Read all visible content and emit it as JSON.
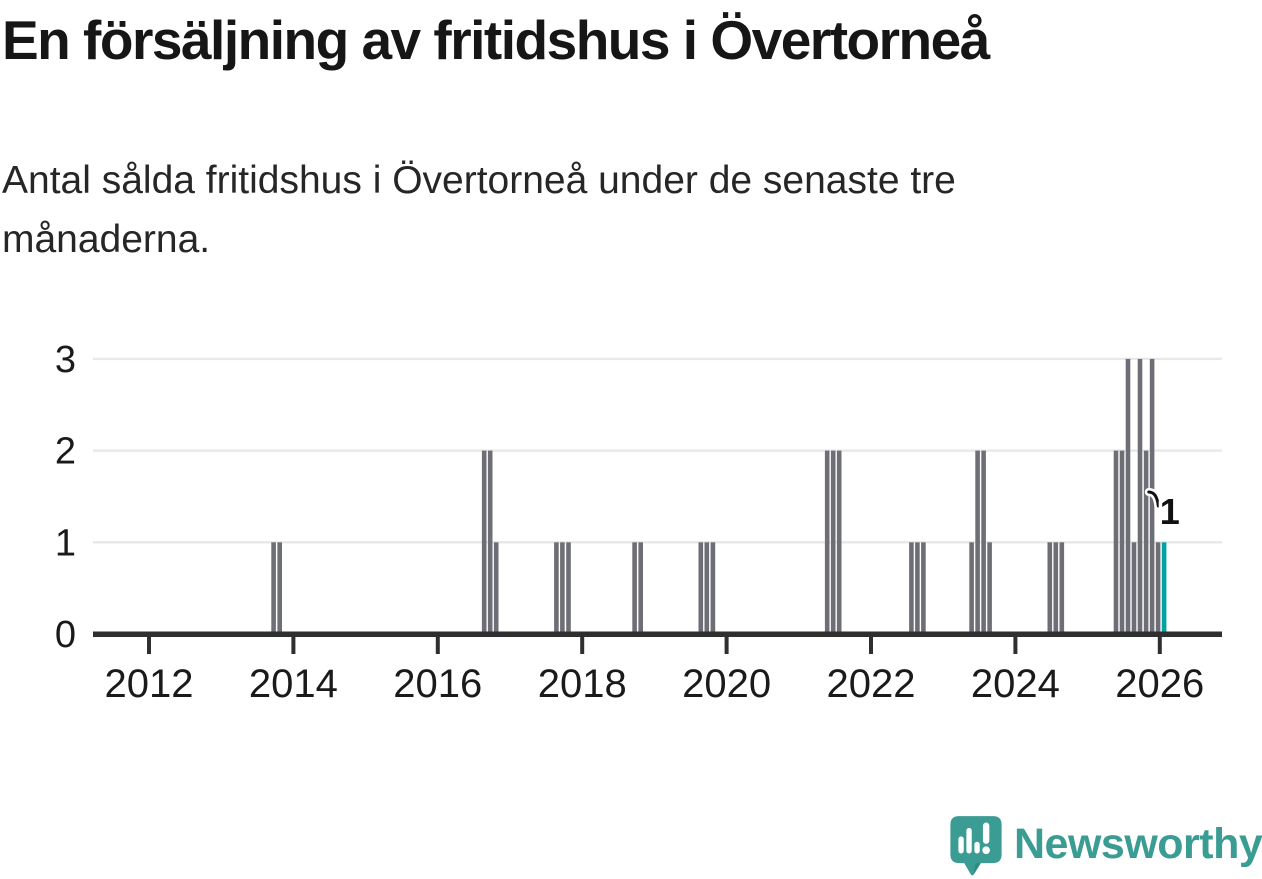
{
  "page": {
    "title": "En försäljning av fritidshus i Övertorneå",
    "subtitle": "Antal sålda fritidshus i Övertorneå under de senaste tre månaderna.",
    "logo_text": "Newsworthy"
  },
  "colors": {
    "bar": "#6e6e76",
    "highlight": "#00a2a0",
    "axis": "#2f2f2f",
    "gridline": "#e8e8e8",
    "label": "#1a1a1a",
    "logo": "#3a9c93"
  },
  "chart_data": {
    "type": "bar",
    "title": "En försäljning av fritidshus i Övertorneå",
    "subtitle": "Antal sålda fritidshus i Övertorneå under de senaste tre månaderna.",
    "xlabel": "",
    "ylabel": "",
    "ylim": [
      0,
      3
    ],
    "yticks": [
      0,
      1,
      2,
      3
    ],
    "xticks": [
      2012,
      2014,
      2016,
      2018,
      2020,
      2022,
      2024,
      2026
    ],
    "grid": "horizontal",
    "legend": "none",
    "annotation": {
      "text": "1",
      "date": "2026-01"
    },
    "bars": [
      {
        "date": "2013-09",
        "value": 1
      },
      {
        "date": "2013-10",
        "value": 1
      },
      {
        "date": "2016-08",
        "value": 2
      },
      {
        "date": "2016-09",
        "value": 2
      },
      {
        "date": "2016-10",
        "value": 1
      },
      {
        "date": "2017-08",
        "value": 1
      },
      {
        "date": "2017-09",
        "value": 1
      },
      {
        "date": "2017-10",
        "value": 1
      },
      {
        "date": "2018-09",
        "value": 1
      },
      {
        "date": "2018-10",
        "value": 1
      },
      {
        "date": "2019-08",
        "value": 1
      },
      {
        "date": "2019-09",
        "value": 1
      },
      {
        "date": "2019-10",
        "value": 1
      },
      {
        "date": "2021-05",
        "value": 2
      },
      {
        "date": "2021-06",
        "value": 2
      },
      {
        "date": "2021-07",
        "value": 2
      },
      {
        "date": "2022-07",
        "value": 1
      },
      {
        "date": "2022-08",
        "value": 1
      },
      {
        "date": "2022-09",
        "value": 1
      },
      {
        "date": "2023-05",
        "value": 1
      },
      {
        "date": "2023-06",
        "value": 2
      },
      {
        "date": "2023-07",
        "value": 2
      },
      {
        "date": "2023-08",
        "value": 1
      },
      {
        "date": "2024-06",
        "value": 1
      },
      {
        "date": "2024-07",
        "value": 1
      },
      {
        "date": "2024-08",
        "value": 1
      },
      {
        "date": "2025-05",
        "value": 2
      },
      {
        "date": "2025-06",
        "value": 2
      },
      {
        "date": "2025-07",
        "value": 3
      },
      {
        "date": "2025-08",
        "value": 1
      },
      {
        "date": "2025-09",
        "value": 3
      },
      {
        "date": "2025-10",
        "value": 2
      },
      {
        "date": "2025-11",
        "value": 3
      },
      {
        "date": "2025-12",
        "value": 1
      },
      {
        "date": "2026-01",
        "value": 1,
        "highlight": true
      }
    ]
  }
}
